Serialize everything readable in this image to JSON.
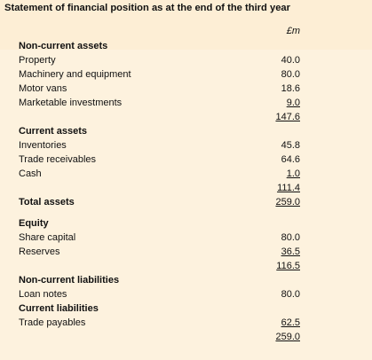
{
  "title": "Statement of financial position as at the end of the third year",
  "unit": "£m",
  "rows": [
    {
      "label": "Non-current assets",
      "type": "head"
    },
    {
      "label": "Property",
      "value": "40.0"
    },
    {
      "label": "Machinery and equipment",
      "value": "80.0"
    },
    {
      "label": "Motor vans",
      "value": "18.6"
    },
    {
      "label": "Marketable investments",
      "value": "9.0",
      "underline": true
    },
    {
      "label": "",
      "value": "147.6",
      "underline": true
    },
    {
      "label": "Current assets",
      "type": "head"
    },
    {
      "label": "Inventories",
      "value": "45.8"
    },
    {
      "label": "Trade receivables",
      "value": "64.6"
    },
    {
      "label": "Cash",
      "value": "1.0",
      "underline": true
    },
    {
      "label": "",
      "value": "111.4",
      "underline": true
    },
    {
      "label": "Total assets",
      "value": "259.0",
      "type": "head",
      "underline": true
    },
    {
      "label": "Equity",
      "type": "head"
    },
    {
      "label": "Share capital",
      "value": "80.0"
    },
    {
      "label": "Reserves",
      "value": "36.5",
      "underline": true
    },
    {
      "label": "",
      "value": "116.5",
      "underline": true
    },
    {
      "label": "Non-current liabilities",
      "type": "head"
    },
    {
      "label": "Loan notes",
      "value": "80.0"
    },
    {
      "label": "Current liabilities",
      "type": "head"
    },
    {
      "label": "Trade payables",
      "value": "62.5",
      "underline": true
    },
    {
      "label": "",
      "value": "259.0",
      "underline": true
    }
  ]
}
